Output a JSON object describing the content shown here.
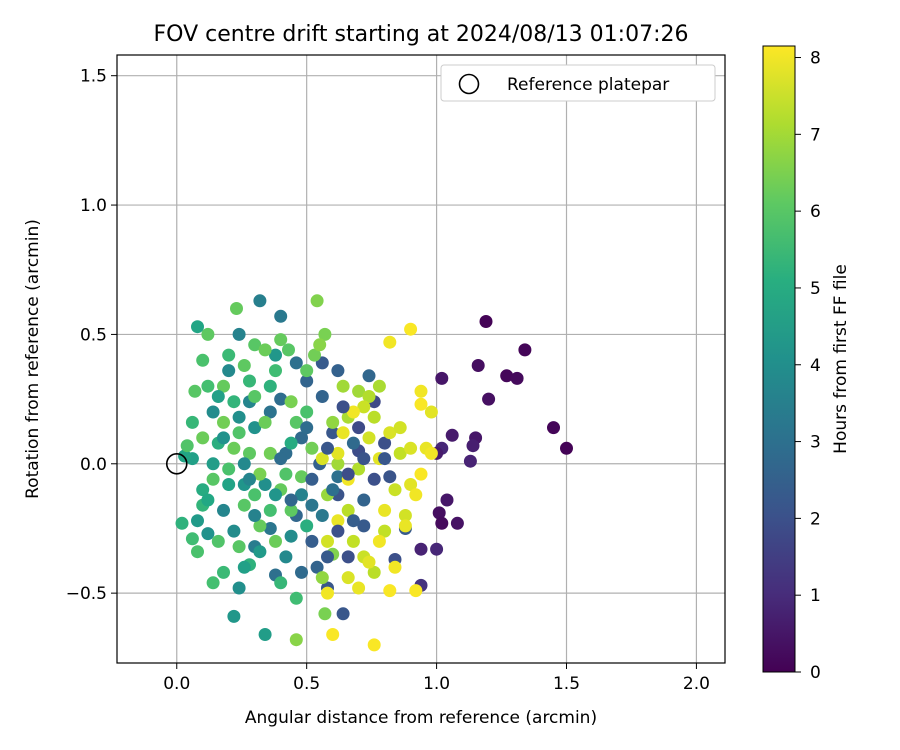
{
  "chart_data": {
    "type": "scatter",
    "title": "FOV centre drift starting at 2024/08/13 01:07:26",
    "xlabel": "Angular distance from reference (arcmin)",
    "ylabel": "Rotation from reference (arcmin)",
    "xlim": [
      -0.23,
      2.11
    ],
    "ylim": [
      -0.77,
      1.58
    ],
    "xticks": [
      "0.0",
      "0.5",
      "1.0",
      "1.5",
      "2.0"
    ],
    "xtick_values": [
      0,
      0.5,
      1.0,
      1.5,
      2.0
    ],
    "yticks": [
      "−0.5",
      "0.0",
      "0.5",
      "1.0",
      "1.5"
    ],
    "ytick_values": [
      -0.5,
      0,
      0.5,
      1.0,
      1.5
    ],
    "grid": true,
    "legend": {
      "position": "top-right",
      "label": "Reference platepar",
      "marker": "open-circle"
    },
    "reference_point": {
      "x": 0,
      "y": 0
    },
    "colorbar": {
      "label": "Hours from first FF file",
      "range": [
        0,
        8.15
      ],
      "ticks": [
        "0",
        "1",
        "2",
        "3",
        "4",
        "5",
        "6",
        "7",
        "8"
      ],
      "tick_values": [
        0,
        1,
        2,
        3,
        4,
        5,
        6,
        7,
        8
      ],
      "colormap": "viridis"
    },
    "series": [
      {
        "points": [
          [
            1.19,
            0.55,
            0.05
          ],
          [
            1.34,
            0.44,
            0.1
          ],
          [
            1.27,
            0.34,
            0.15
          ],
          [
            1.31,
            0.33,
            0.2
          ],
          [
            1.16,
            0.38,
            0.3
          ],
          [
            1.2,
            0.25,
            0.35
          ],
          [
            1.45,
            0.14,
            0.1
          ],
          [
            1.5,
            0.06,
            0.05
          ],
          [
            1.02,
            0.33,
            0.5
          ],
          [
            1.06,
            0.11,
            0.6
          ],
          [
            1.15,
            0.1,
            0.5
          ],
          [
            1.14,
            0.07,
            0.7
          ],
          [
            1.02,
            0.06,
            0.9
          ],
          [
            1.13,
            0.01,
            0.8
          ],
          [
            1.0,
            0.04,
            0.6
          ],
          [
            1.01,
            -0.19,
            0.3
          ],
          [
            1.02,
            -0.23,
            0.2
          ],
          [
            1.08,
            -0.23,
            0.4
          ],
          [
            1.04,
            -0.14,
            0.5
          ],
          [
            0.94,
            -0.33,
            0.8
          ],
          [
            1.0,
            -0.33,
            0.9
          ],
          [
            0.94,
            -0.47,
            1.2
          ],
          [
            0.76,
            0.24,
            1.8
          ],
          [
            0.8,
            0.08,
            2.0
          ],
          [
            0.7,
            0.05,
            1.9
          ],
          [
            0.6,
            0.12,
            2.2
          ],
          [
            0.55,
            0.0,
            2.5
          ],
          [
            0.62,
            -0.12,
            2.1
          ],
          [
            0.72,
            -0.24,
            2.3
          ],
          [
            0.66,
            -0.36,
            2.0
          ],
          [
            0.52,
            -0.3,
            2.4
          ],
          [
            0.58,
            -0.48,
            2.2
          ],
          [
            0.46,
            -0.2,
            2.7
          ],
          [
            0.48,
            0.1,
            2.8
          ],
          [
            0.4,
            0.25,
            2.9
          ],
          [
            0.5,
            0.32,
            2.6
          ],
          [
            0.56,
            0.39,
            2.3
          ],
          [
            0.46,
            0.39,
            3.0
          ],
          [
            0.36,
            0.2,
            3.1
          ],
          [
            0.42,
            0.04,
            2.9
          ],
          [
            0.62,
            0.36,
            2.5
          ],
          [
            0.74,
            0.34,
            2.7
          ],
          [
            0.82,
            -0.05,
            2.1
          ],
          [
            0.88,
            -0.25,
            2.3
          ],
          [
            0.84,
            -0.37,
            2.0
          ],
          [
            0.64,
            -0.58,
            2.2
          ],
          [
            0.54,
            -0.4,
            2.6
          ],
          [
            0.38,
            -0.43,
            3.0
          ],
          [
            0.3,
            -0.32,
            3.4
          ],
          [
            0.36,
            -0.25,
            3.2
          ],
          [
            0.32,
            0.63,
            3.5
          ],
          [
            0.4,
            0.57,
            3.3
          ],
          [
            0.24,
            0.5,
            3.6
          ],
          [
            0.2,
            0.36,
            3.8
          ],
          [
            0.28,
            0.24,
            3.7
          ],
          [
            0.14,
            0.2,
            3.9
          ],
          [
            0.18,
            -0.18,
            3.7
          ],
          [
            0.24,
            -0.48,
            4.0
          ],
          [
            0.34,
            -0.66,
            4.5
          ],
          [
            0.22,
            -0.59,
            4.3
          ],
          [
            0.12,
            -0.27,
            4.1
          ],
          [
            0.08,
            -0.22,
            4.4
          ],
          [
            0.06,
            0.02,
            4.6
          ],
          [
            0.03,
            0.03,
            4.8
          ],
          [
            0.14,
            0.0,
            4.5
          ],
          [
            0.26,
            -0.08,
            4.2
          ],
          [
            0.44,
            -0.28,
            3.9
          ],
          [
            0.48,
            -0.12,
            3.6
          ],
          [
            0.56,
            -0.2,
            3.3
          ],
          [
            0.62,
            -0.05,
            3.0
          ],
          [
            0.68,
            0.08,
            2.8
          ],
          [
            0.72,
            -0.14,
            2.6
          ],
          [
            0.42,
            -0.36,
            3.8
          ],
          [
            0.34,
            -0.08,
            4.0
          ],
          [
            0.3,
            0.14,
            4.1
          ],
          [
            0.38,
            0.42,
            4.3
          ],
          [
            0.08,
            0.53,
            4.8
          ],
          [
            0.02,
            -0.23,
            5.2
          ],
          [
            0.1,
            -0.1,
            5.0
          ],
          [
            0.16,
            0.08,
            5.1
          ],
          [
            0.22,
            0.24,
            5.3
          ],
          [
            0.28,
            0.32,
            5.4
          ],
          [
            0.36,
            0.3,
            5.2
          ],
          [
            0.44,
            0.08,
            5.0
          ],
          [
            0.5,
            -0.24,
            5.1
          ],
          [
            0.46,
            -0.52,
            5.6
          ],
          [
            0.4,
            -0.46,
            5.4
          ],
          [
            0.28,
            -0.39,
            5.2
          ],
          [
            0.18,
            -0.42,
            5.5
          ],
          [
            0.14,
            -0.46,
            5.7
          ],
          [
            0.08,
            -0.34,
            5.8
          ],
          [
            0.06,
            -0.29,
            5.6
          ],
          [
            0.04,
            0.07,
            5.9
          ],
          [
            0.07,
            0.28,
            6.0
          ],
          [
            0.1,
            0.4,
            5.8
          ],
          [
            0.12,
            0.5,
            6.1
          ],
          [
            0.23,
            0.6,
            6.2
          ],
          [
            0.3,
            0.46,
            6.0
          ],
          [
            0.34,
            0.44,
            6.3
          ],
          [
            0.4,
            0.48,
            6.2
          ],
          [
            0.43,
            0.44,
            6.0
          ],
          [
            0.5,
            0.36,
            6.1
          ],
          [
            0.53,
            0.42,
            6.4
          ],
          [
            0.54,
            0.63,
            6.6
          ],
          [
            0.57,
            0.5,
            6.5
          ],
          [
            0.55,
            0.46,
            6.7
          ],
          [
            0.24,
            0.12,
            5.9
          ],
          [
            0.2,
            -0.02,
            5.8
          ],
          [
            0.26,
            -0.16,
            6.0
          ],
          [
            0.32,
            -0.24,
            6.2
          ],
          [
            0.38,
            -0.3,
            6.3
          ],
          [
            0.44,
            -0.18,
            6.1
          ],
          [
            0.48,
            -0.05,
            6.2
          ],
          [
            0.52,
            0.06,
            6.4
          ],
          [
            0.44,
            0.24,
            6.5
          ],
          [
            0.46,
            -0.68,
            6.7
          ],
          [
            0.57,
            -0.58,
            6.5
          ],
          [
            0.56,
            -0.44,
            6.8
          ],
          [
            0.6,
            -0.35,
            6.6
          ],
          [
            0.58,
            -0.12,
            6.9
          ],
          [
            0.62,
            0.0,
            7.0
          ],
          [
            0.66,
            0.18,
            7.1
          ],
          [
            0.6,
            0.16,
            6.8
          ],
          [
            0.7,
            0.28,
            7.0
          ],
          [
            0.74,
            0.26,
            7.2
          ],
          [
            0.76,
            0.18,
            7.3
          ],
          [
            0.78,
            0.3,
            7.1
          ],
          [
            0.64,
            0.3,
            7.0
          ],
          [
            0.7,
            -0.02,
            7.2
          ],
          [
            0.66,
            -0.18,
            7.3
          ],
          [
            0.68,
            -0.3,
            7.4
          ],
          [
            0.72,
            -0.36,
            7.5
          ],
          [
            0.76,
            -0.42,
            7.3
          ],
          [
            0.8,
            -0.26,
            7.4
          ],
          [
            0.84,
            -0.1,
            7.5
          ],
          [
            0.86,
            0.04,
            7.4
          ],
          [
            0.88,
            -0.2,
            7.6
          ],
          [
            0.9,
            0.06,
            7.7
          ],
          [
            0.74,
            0.1,
            7.6
          ],
          [
            0.72,
            0.22,
            7.5
          ],
          [
            0.78,
            0.02,
            7.8
          ],
          [
            0.82,
            0.12,
            7.7
          ],
          [
            0.86,
            0.14,
            7.6
          ],
          [
            0.9,
            -0.08,
            7.8
          ],
          [
            0.92,
            -0.12,
            8.0
          ],
          [
            0.94,
            -0.04,
            8.1
          ],
          [
            0.96,
            0.06,
            7.9
          ],
          [
            0.98,
            0.2,
            7.8
          ],
          [
            0.98,
            0.04,
            8.0
          ],
          [
            0.94,
            0.23,
            8.1
          ],
          [
            0.94,
            0.28,
            8.0
          ],
          [
            0.9,
            0.52,
            8.1
          ],
          [
            0.82,
            0.47,
            8.0
          ],
          [
            0.88,
            -0.24,
            7.9
          ],
          [
            0.84,
            -0.4,
            8.0
          ],
          [
            0.82,
            -0.49,
            8.1
          ],
          [
            0.92,
            -0.49,
            8.1
          ],
          [
            0.78,
            -0.3,
            8.0
          ],
          [
            0.76,
            -0.7,
            8.1
          ],
          [
            0.6,
            -0.66,
            8.1
          ],
          [
            0.58,
            -0.5,
            8.0
          ],
          [
            0.62,
            -0.22,
            7.9
          ],
          [
            0.66,
            -0.06,
            8.0
          ],
          [
            0.64,
            0.12,
            7.9
          ],
          [
            0.68,
            0.2,
            8.0
          ],
          [
            0.62,
            0.04,
            7.8
          ],
          [
            0.56,
            0.02,
            7.7
          ],
          [
            0.58,
            -0.3,
            7.6
          ],
          [
            0.66,
            -0.44,
            7.7
          ],
          [
            0.7,
            -0.48,
            7.9
          ],
          [
            0.74,
            -0.38,
            7.8
          ],
          [
            0.8,
            -0.18,
            7.9
          ],
          [
            0.22,
            0.06,
            6.3
          ],
          [
            0.18,
            0.16,
            6.4
          ],
          [
            0.28,
            0.04,
            6.1
          ],
          [
            0.32,
            -0.04,
            6.5
          ],
          [
            0.36,
            0.04,
            6.4
          ],
          [
            0.4,
            -0.1,
            6.2
          ],
          [
            0.14,
            -0.06,
            6.0
          ],
          [
            0.1,
            0.1,
            6.3
          ],
          [
            0.18,
            0.3,
            6.2
          ],
          [
            0.26,
            0.38,
            6.1
          ],
          [
            0.3,
            0.26,
            6.0
          ],
          [
            0.34,
            0.16,
            6.3
          ],
          [
            0.16,
            -0.3,
            5.9
          ],
          [
            0.24,
            -0.32,
            6.0
          ],
          [
            0.3,
            -0.12,
            5.8
          ],
          [
            0.36,
            -0.18,
            5.7
          ],
          [
            0.42,
            -0.04,
            5.9
          ],
          [
            0.46,
            0.16,
            6.0
          ],
          [
            0.5,
            0.2,
            5.8
          ],
          [
            0.38,
            0.36,
            5.6
          ],
          [
            0.2,
            0.42,
            5.5
          ],
          [
            0.12,
            0.3,
            5.7
          ],
          [
            0.06,
            0.16,
            5.4
          ],
          [
            0.1,
            -0.16,
            5.3
          ],
          [
            0.4,
            0.02,
            2.9
          ],
          [
            0.44,
            -0.14,
            2.7
          ],
          [
            0.52,
            -0.06,
            2.4
          ],
          [
            0.58,
            0.06,
            2.2
          ],
          [
            0.62,
            -0.26,
            2.0
          ],
          [
            0.66,
            -0.04,
            1.9
          ],
          [
            0.7,
            0.14,
            1.8
          ],
          [
            0.64,
            0.22,
            2.0
          ],
          [
            0.56,
            0.26,
            2.6
          ],
          [
            0.5,
            0.14,
            2.9
          ],
          [
            0.58,
            -0.36,
            2.3
          ],
          [
            0.48,
            -0.42,
            2.8
          ],
          [
            0.52,
            -0.16,
            3.2
          ],
          [
            0.6,
            -0.1,
            3.0
          ],
          [
            0.68,
            -0.22,
            2.4
          ],
          [
            0.72,
            0.02,
            2.1
          ],
          [
            0.76,
            -0.06,
            2.0
          ],
          [
            0.8,
            0.02,
            2.2
          ],
          [
            0.26,
            0.0,
            3.8
          ],
          [
            0.3,
            -0.2,
            3.6
          ],
          [
            0.22,
            -0.26,
            3.9
          ],
          [
            0.18,
            0.1,
            4.1
          ],
          [
            0.24,
            0.18,
            4.0
          ],
          [
            0.28,
            -0.06,
            3.7
          ],
          [
            0.16,
            0.26,
            4.6
          ],
          [
            0.2,
            -0.08,
            4.7
          ],
          [
            0.12,
            -0.14,
            4.9
          ],
          [
            0.26,
            -0.4,
            4.6
          ],
          [
            0.32,
            -0.34,
            4.4
          ],
          [
            0.38,
            -0.12,
            4.2
          ]
        ]
      }
    ]
  }
}
